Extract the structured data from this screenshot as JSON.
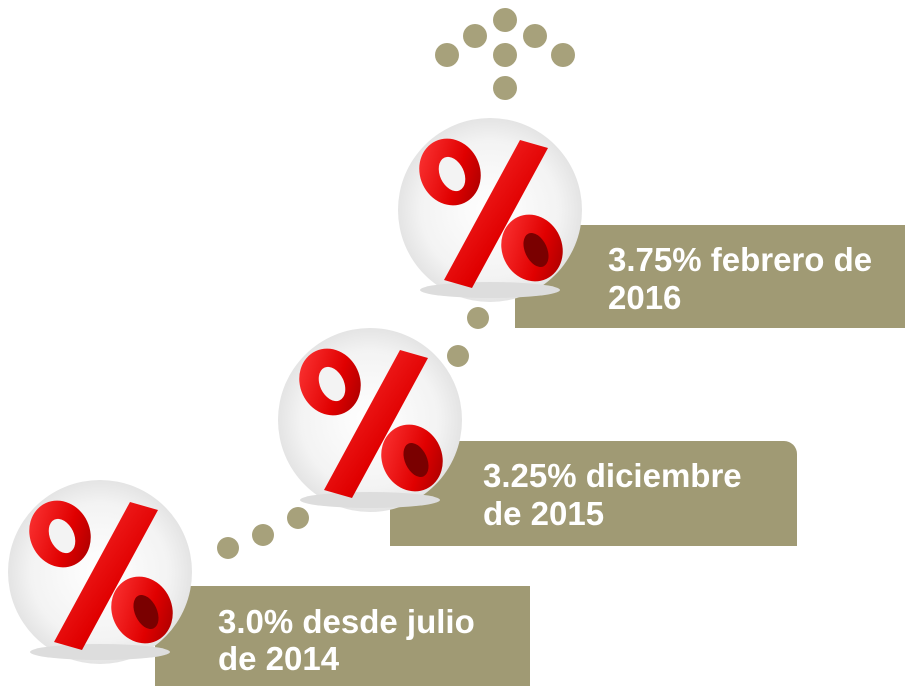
{
  "steps": [
    {
      "label_lines": [
        "3.0% desde julio",
        "de 2014"
      ]
    },
    {
      "label_lines": [
        "3.25% diciembre",
        "de 2015"
      ]
    },
    {
      "label_lines": [
        "3.75% febrero de",
        "2016"
      ]
    }
  ]
}
